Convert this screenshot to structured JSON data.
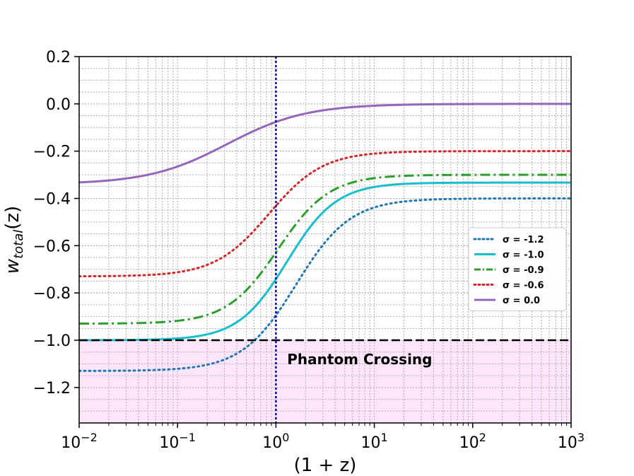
{
  "chart_data": {
    "type": "line",
    "title": "",
    "xlabel": "(1 + z)",
    "ylabel_main": "w",
    "ylabel_sub": "total",
    "ylabel_arg": "(z)",
    "xscale": "log",
    "xlim": [
      0.01,
      1000
    ],
    "ylim": [
      -1.35,
      0.2
    ],
    "grid": true,
    "x_ticks": [
      {
        "value": 0.01,
        "base": "10",
        "exp": "−2"
      },
      {
        "value": 0.1,
        "base": "10",
        "exp": "−1"
      },
      {
        "value": 1,
        "base": "10",
        "exp": "0"
      },
      {
        "value": 10,
        "base": "10",
        "exp": "1"
      },
      {
        "value": 100,
        "base": "10",
        "exp": "2"
      },
      {
        "value": 1000,
        "base": "10",
        "exp": "3"
      }
    ],
    "y_ticks": [
      {
        "value": 0.2,
        "label": "0.2"
      },
      {
        "value": 0.0,
        "label": "0.0"
      },
      {
        "value": -0.2,
        "label": "−0.2"
      },
      {
        "value": -0.4,
        "label": "−0.4"
      },
      {
        "value": -0.6,
        "label": "−0.6"
      },
      {
        "value": -0.8,
        "label": "−0.8"
      },
      {
        "value": -1.0,
        "label": "−1.0"
      },
      {
        "value": -1.2,
        "label": "−1.2"
      }
    ],
    "legend_position": "center-right",
    "series": [
      {
        "name": "σ = -1.2",
        "color": "#1f77b4",
        "style": "dotted",
        "low": -1.13,
        "high": -0.4,
        "center": 1.6,
        "width": 0.55
      },
      {
        "name": "σ = -1.0",
        "color": "#17becf",
        "style": "solid",
        "low": -1.0,
        "high": -0.333,
        "center": 1.3,
        "width": 0.5
      },
      {
        "name": "σ = -0.9",
        "color": "#2ca02c",
        "style": "dashdot",
        "low": -0.93,
        "high": -0.3,
        "center": 1.05,
        "width": 0.52
      },
      {
        "name": "σ = -0.6",
        "color": "#d62728",
        "style": "dotted",
        "low": -0.73,
        "high": -0.2,
        "center": 0.85,
        "width": 0.55
      },
      {
        "name": "σ = 0.0",
        "color": "#9467bd",
        "style": "solid",
        "low": -0.34,
        "high": 0.0,
        "center": 0.32,
        "width": 0.8
      }
    ],
    "reference_lines": [
      {
        "orientation": "horizontal",
        "value": -1.0,
        "color": "#000000",
        "style": "dashed"
      },
      {
        "orientation": "vertical",
        "value": 1.0,
        "color": "#0000cc",
        "style": "dotted"
      }
    ],
    "shaded_region": {
      "from": -1.35,
      "to": -1.0,
      "color": "#fde6fb"
    },
    "annotation": {
      "text": "Phantom Crossing",
      "x": 1.3,
      "y": -1.08
    }
  }
}
